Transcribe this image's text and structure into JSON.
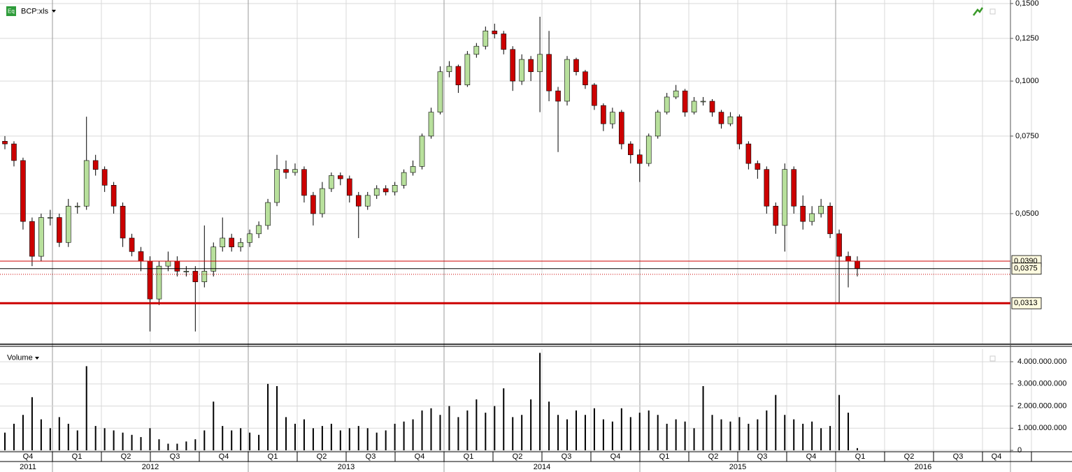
{
  "chart_data": [
    {
      "type": "candlestick",
      "title": "BCP:xls",
      "log_scale": true,
      "grid": true,
      "open": [
        0.073,
        0.072,
        0.066,
        0.048,
        0.04,
        0.049,
        0.049,
        0.043,
        0.052,
        0.052,
        0.066,
        0.063,
        0.058,
        0.052,
        0.044,
        0.041,
        0.039,
        0.032,
        0.038,
        0.039,
        0.037,
        0.037,
        0.035,
        0.037,
        0.042,
        0.044,
        0.042,
        0.043,
        0.045,
        0.047,
        0.053,
        0.063,
        0.062,
        0.063,
        0.055,
        0.05,
        0.057,
        0.061,
        0.06,
        0.055,
        0.052,
        0.055,
        0.057,
        0.056,
        0.058,
        0.062,
        0.064,
        0.075,
        0.085,
        0.105,
        0.108,
        0.098,
        0.115,
        0.12,
        0.13,
        0.128,
        0.118,
        0.1,
        0.112,
        0.105,
        0.115,
        0.095,
        0.09,
        0.112,
        0.105,
        0.098,
        0.088,
        0.08,
        0.085,
        0.072,
        0.068,
        0.065,
        0.075,
        0.085,
        0.092,
        0.095,
        0.085,
        0.09,
        0.09,
        0.085,
        0.08,
        0.083,
        0.072,
        0.065,
        0.063,
        0.052,
        0.047,
        0.063,
        0.052,
        0.048,
        0.05,
        0.052,
        0.045,
        0.04,
        0.039
      ],
      "high": [
        0.075,
        0.073,
        0.067,
        0.049,
        0.05,
        0.051,
        0.05,
        0.054,
        0.053,
        0.083,
        0.068,
        0.064,
        0.059,
        0.053,
        0.045,
        0.042,
        0.04,
        0.039,
        0.041,
        0.04,
        0.038,
        0.038,
        0.047,
        0.043,
        0.049,
        0.045,
        0.044,
        0.046,
        0.048,
        0.054,
        0.068,
        0.066,
        0.065,
        0.064,
        0.056,
        0.059,
        0.062,
        0.062,
        0.061,
        0.056,
        0.056,
        0.058,
        0.058,
        0.059,
        0.063,
        0.066,
        0.076,
        0.087,
        0.108,
        0.111,
        0.109,
        0.117,
        0.122,
        0.133,
        0.135,
        0.13,
        0.12,
        0.115,
        0.114,
        0.14,
        0.13,
        0.097,
        0.114,
        0.113,
        0.106,
        0.099,
        0.089,
        0.087,
        0.086,
        0.073,
        0.07,
        0.076,
        0.086,
        0.094,
        0.098,
        0.096,
        0.092,
        0.092,
        0.091,
        0.086,
        0.085,
        0.084,
        0.073,
        0.066,
        0.064,
        0.053,
        0.065,
        0.064,
        0.055,
        0.052,
        0.054,
        0.053,
        0.046,
        0.041,
        0.04
      ],
      "low": [
        0.07,
        0.064,
        0.046,
        0.038,
        0.039,
        0.047,
        0.042,
        0.042,
        0.05,
        0.051,
        0.061,
        0.056,
        0.05,
        0.042,
        0.04,
        0.037,
        0.027,
        0.031,
        0.037,
        0.036,
        0.036,
        0.027,
        0.034,
        0.036,
        0.041,
        0.041,
        0.041,
        0.042,
        0.044,
        0.046,
        0.052,
        0.06,
        0.061,
        0.053,
        0.047,
        0.049,
        0.056,
        0.058,
        0.053,
        0.044,
        0.051,
        0.054,
        0.055,
        0.055,
        0.057,
        0.061,
        0.063,
        0.074,
        0.084,
        0.102,
        0.094,
        0.097,
        0.113,
        0.118,
        0.125,
        0.115,
        0.095,
        0.098,
        0.1,
        0.085,
        0.09,
        0.069,
        0.088,
        0.103,
        0.096,
        0.086,
        0.077,
        0.078,
        0.07,
        0.065,
        0.059,
        0.064,
        0.074,
        0.084,
        0.091,
        0.083,
        0.084,
        0.088,
        0.083,
        0.078,
        0.079,
        0.07,
        0.063,
        0.06,
        0.05,
        0.045,
        0.041,
        0.05,
        0.046,
        0.047,
        0.049,
        0.044,
        0.0313,
        0.034,
        0.036
      ],
      "close": [
        0.072,
        0.066,
        0.048,
        0.04,
        0.049,
        0.049,
        0.043,
        0.052,
        0.052,
        0.066,
        0.063,
        0.058,
        0.052,
        0.044,
        0.041,
        0.039,
        0.032,
        0.038,
        0.039,
        0.037,
        0.037,
        0.035,
        0.037,
        0.042,
        0.044,
        0.042,
        0.043,
        0.045,
        0.047,
        0.053,
        0.063,
        0.062,
        0.063,
        0.055,
        0.05,
        0.057,
        0.061,
        0.06,
        0.055,
        0.052,
        0.055,
        0.057,
        0.056,
        0.058,
        0.062,
        0.064,
        0.075,
        0.085,
        0.105,
        0.108,
        0.098,
        0.115,
        0.12,
        0.13,
        0.128,
        0.118,
        0.1,
        0.112,
        0.105,
        0.115,
        0.095,
        0.09,
        0.112,
        0.105,
        0.098,
        0.088,
        0.08,
        0.085,
        0.072,
        0.068,
        0.065,
        0.075,
        0.085,
        0.092,
        0.095,
        0.085,
        0.09,
        0.09,
        0.085,
        0.08,
        0.083,
        0.072,
        0.065,
        0.063,
        0.052,
        0.047,
        0.063,
        0.052,
        0.048,
        0.05,
        0.052,
        0.045,
        0.04,
        0.039,
        0.0375
      ],
      "up_color": "#b8e09c",
      "down_color": "#cc0000",
      "ylim": [
        0.02535,
        0.1528
      ],
      "yticks": [
        {
          "value": 0.05,
          "label": "0,0500"
        },
        {
          "value": 0.075,
          "label": "0,0750"
        },
        {
          "value": 0.1,
          "label": "0,1000"
        },
        {
          "value": 0.125,
          "label": "0,1250"
        },
        {
          "value": 0.15,
          "label": "0,1500"
        }
      ],
      "levels": [
        {
          "value": 0.039,
          "label": "0,0390",
          "color": "#cc0000",
          "width": 1
        },
        {
          "value": 0.0375,
          "label": "0,0375",
          "color": "#000000",
          "width": 1
        },
        {
          "value": 0.0364,
          "color": "#cc0000",
          "width": 1,
          "style": "dotted"
        },
        {
          "value": 0.0313,
          "label": "0,0313",
          "color": "#cc0000",
          "width": 3
        }
      ],
      "quarters": [
        "Q4",
        "Q1",
        "Q2",
        "Q3",
        "Q4",
        "Q1",
        "Q2",
        "Q3",
        "Q4",
        "Q1",
        "Q2",
        "Q3",
        "Q4",
        "Q1",
        "Q2",
        "Q3",
        "Q4",
        "Q1",
        "Q2",
        "Q3",
        "Q4"
      ],
      "years": [
        {
          "label": "2011",
          "quarters": 1
        },
        {
          "label": "2012",
          "quarters": 4
        },
        {
          "label": "2013",
          "quarters": 4
        },
        {
          "label": "2014",
          "quarters": 4
        },
        {
          "label": "2015",
          "quarters": 4
        },
        {
          "label": "2016",
          "quarters": 4
        }
      ]
    },
    {
      "type": "bar",
      "title": "Volume",
      "color": "#000000",
      "grid": true,
      "values": [
        800000000.0,
        1200000000.0,
        1600000000.0,
        2400000000.0,
        1400000000.0,
        1000000000.0,
        1500000000.0,
        1200000000.0,
        900000000.0,
        3800000000.0,
        1100000000.0,
        1000000000.0,
        900000000.0,
        800000000.0,
        700000000.0,
        600000000.0,
        1000000000.0,
        500000000.0,
        300000000.0,
        300000000.0,
        400000000.0,
        500000000.0,
        900000000.0,
        2200000000.0,
        1100000000.0,
        900000000.0,
        1000000000.0,
        800000000.0,
        700000000.0,
        3000000000.0,
        2900000000.0,
        1500000000.0,
        1200000000.0,
        1400000000.0,
        1000000000.0,
        1100000000.0,
        1200000000.0,
        900000000.0,
        1000000000.0,
        1100000000.0,
        1000000000.0,
        800000000.0,
        900000000.0,
        1200000000.0,
        1300000000.0,
        1400000000.0,
        1800000000.0,
        1900000000.0,
        1600000000.0,
        2000000000.0,
        1500000000.0,
        1800000000.0,
        2300000000.0,
        1700000000.0,
        2000000000.0,
        2800000000.0,
        1500000000.0,
        1600000000.0,
        2300000000.0,
        4400000000.0,
        2200000000.0,
        1600000000.0,
        1400000000.0,
        1800000000.0,
        1600000000.0,
        1900000000.0,
        1400000000.0,
        1300000000.0,
        1900000000.0,
        1500000000.0,
        1700000000.0,
        1800000000.0,
        1600000000.0,
        1200000000.0,
        1400000000.0,
        1300000000.0,
        1000000000.0,
        2900000000.0,
        1600000000.0,
        1400000000.0,
        1300000000.0,
        1500000000.0,
        1200000000.0,
        1400000000.0,
        1800000000.0,
        2500000000.0,
        1600000000.0,
        1400000000.0,
        1200000000.0,
        1300000000.0,
        1000000000.0,
        1100000000.0,
        2500000000.0,
        1700000000.0,
        100000000.0
      ],
      "ylim": [
        0,
        4570000000.0
      ],
      "yticks": [
        0,
        {
          "value": 1000000000.0,
          "label": "1.000.000.000"
        },
        {
          "value": 2000000000.0,
          "label": "2.000.000.000"
        },
        {
          "value": 3000000000.0,
          "label": "3.000.000.000"
        },
        {
          "value": 4000000000.0,
          "label": "4.000.000.000"
        }
      ]
    }
  ]
}
